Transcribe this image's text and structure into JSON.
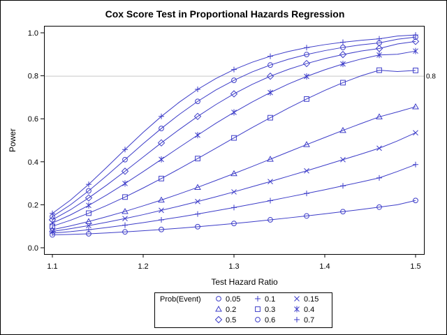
{
  "chart_data": {
    "type": "line",
    "title": "Cox Score Test in Proportional Hazards Regression",
    "xlabel": "Test Hazard Ratio",
    "ylabel": "Power",
    "xlim": [
      1.1,
      1.5
    ],
    "ylim": [
      0.0,
      1.0
    ],
    "x_ticks": [
      "1.1",
      "1.2",
      "1.3",
      "1.4",
      "1.5"
    ],
    "y_ticks": [
      "0.0",
      "0.2",
      "0.4",
      "0.6",
      "0.8",
      "1.0"
    ],
    "reference_line": {
      "y": 0.8,
      "label": "0.8"
    },
    "line_color": "#3c3cc8",
    "grid": false,
    "legend": {
      "title": "Prob(Event)",
      "placement": "bottom-center",
      "entries": [
        {
          "label": "0.05",
          "marker": "circle"
        },
        {
          "label": "0.1",
          "marker": "plus"
        },
        {
          "label": "0.15",
          "marker": "x"
        },
        {
          "label": "0.2",
          "marker": "triangle"
        },
        {
          "label": "0.3",
          "marker": "square"
        },
        {
          "label": "0.4",
          "marker": "star"
        },
        {
          "label": "0.5",
          "marker": "diamond"
        },
        {
          "label": "0.6",
          "marker": "circle"
        },
        {
          "label": "0.7",
          "marker": "plus"
        }
      ]
    },
    "x": [
      1.1,
      1.12,
      1.14,
      1.16,
      1.18,
      1.2,
      1.22,
      1.24,
      1.26,
      1.28,
      1.3,
      1.32,
      1.34,
      1.36,
      1.38,
      1.4,
      1.42,
      1.44,
      1.46,
      1.48,
      1.5
    ],
    "series": [
      {
        "name": "0.05",
        "marker": "circle",
        "values": [
          0.06,
          0.062,
          0.065,
          0.069,
          0.074,
          0.079,
          0.085,
          0.091,
          0.098,
          0.105,
          0.113,
          0.121,
          0.13,
          0.139,
          0.148,
          0.158,
          0.168,
          0.178,
          0.189,
          0.2,
          0.22
        ]
      },
      {
        "name": "0.1",
        "marker": "plus",
        "values": [
          0.068,
          0.075,
          0.084,
          0.094,
          0.105,
          0.117,
          0.13,
          0.143,
          0.157,
          0.172,
          0.187,
          0.203,
          0.219,
          0.236,
          0.253,
          0.27,
          0.288,
          0.306,
          0.325,
          0.355,
          0.387
        ]
      },
      {
        "name": "0.15",
        "marker": "x",
        "values": [
          0.076,
          0.089,
          0.103,
          0.119,
          0.136,
          0.154,
          0.174,
          0.194,
          0.215,
          0.237,
          0.26,
          0.284,
          0.308,
          0.333,
          0.358,
          0.384,
          0.41,
          0.436,
          0.463,
          0.497,
          0.535
        ]
      },
      {
        "name": "0.2",
        "marker": "triangle",
        "values": [
          0.084,
          0.102,
          0.122,
          0.145,
          0.169,
          0.195,
          0.222,
          0.251,
          0.281,
          0.313,
          0.345,
          0.378,
          0.412,
          0.446,
          0.48,
          0.513,
          0.546,
          0.578,
          0.609,
          0.632,
          0.656
        ]
      },
      {
        "name": "0.3",
        "marker": "square",
        "values": [
          0.1,
          0.128,
          0.161,
          0.197,
          0.236,
          0.278,
          0.322,
          0.368,
          0.415,
          0.463,
          0.511,
          0.559,
          0.605,
          0.65,
          0.692,
          0.732,
          0.768,
          0.8,
          0.826,
          0.82,
          0.825
        ]
      },
      {
        "name": "0.4",
        "marker": "star",
        "values": [
          0.115,
          0.153,
          0.197,
          0.246,
          0.299,
          0.354,
          0.411,
          0.468,
          0.524,
          0.579,
          0.63,
          0.678,
          0.722,
          0.762,
          0.797,
          0.828,
          0.855,
          0.878,
          0.897,
          0.9,
          0.915
        ]
      },
      {
        "name": "0.5",
        "marker": "diamond",
        "values": [
          0.13,
          0.177,
          0.232,
          0.292,
          0.356,
          0.422,
          0.488,
          0.551,
          0.611,
          0.666,
          0.716,
          0.76,
          0.798,
          0.83,
          0.857,
          0.88,
          0.899,
          0.915,
          0.927,
          0.948,
          0.96
        ]
      },
      {
        "name": "0.6",
        "marker": "circle",
        "values": [
          0.145,
          0.2,
          0.265,
          0.336,
          0.41,
          0.484,
          0.555,
          0.621,
          0.681,
          0.734,
          0.779,
          0.818,
          0.85,
          0.877,
          0.899,
          0.917,
          0.932,
          0.944,
          0.953,
          0.97,
          0.98
        ]
      },
      {
        "name": "0.7",
        "marker": "plus",
        "values": [
          0.16,
          0.222,
          0.295,
          0.375,
          0.457,
          0.537,
          0.611,
          0.678,
          0.737,
          0.787,
          0.829,
          0.863,
          0.891,
          0.913,
          0.931,
          0.945,
          0.956,
          0.965,
          0.972,
          0.985,
          0.99
        ]
      }
    ]
  }
}
